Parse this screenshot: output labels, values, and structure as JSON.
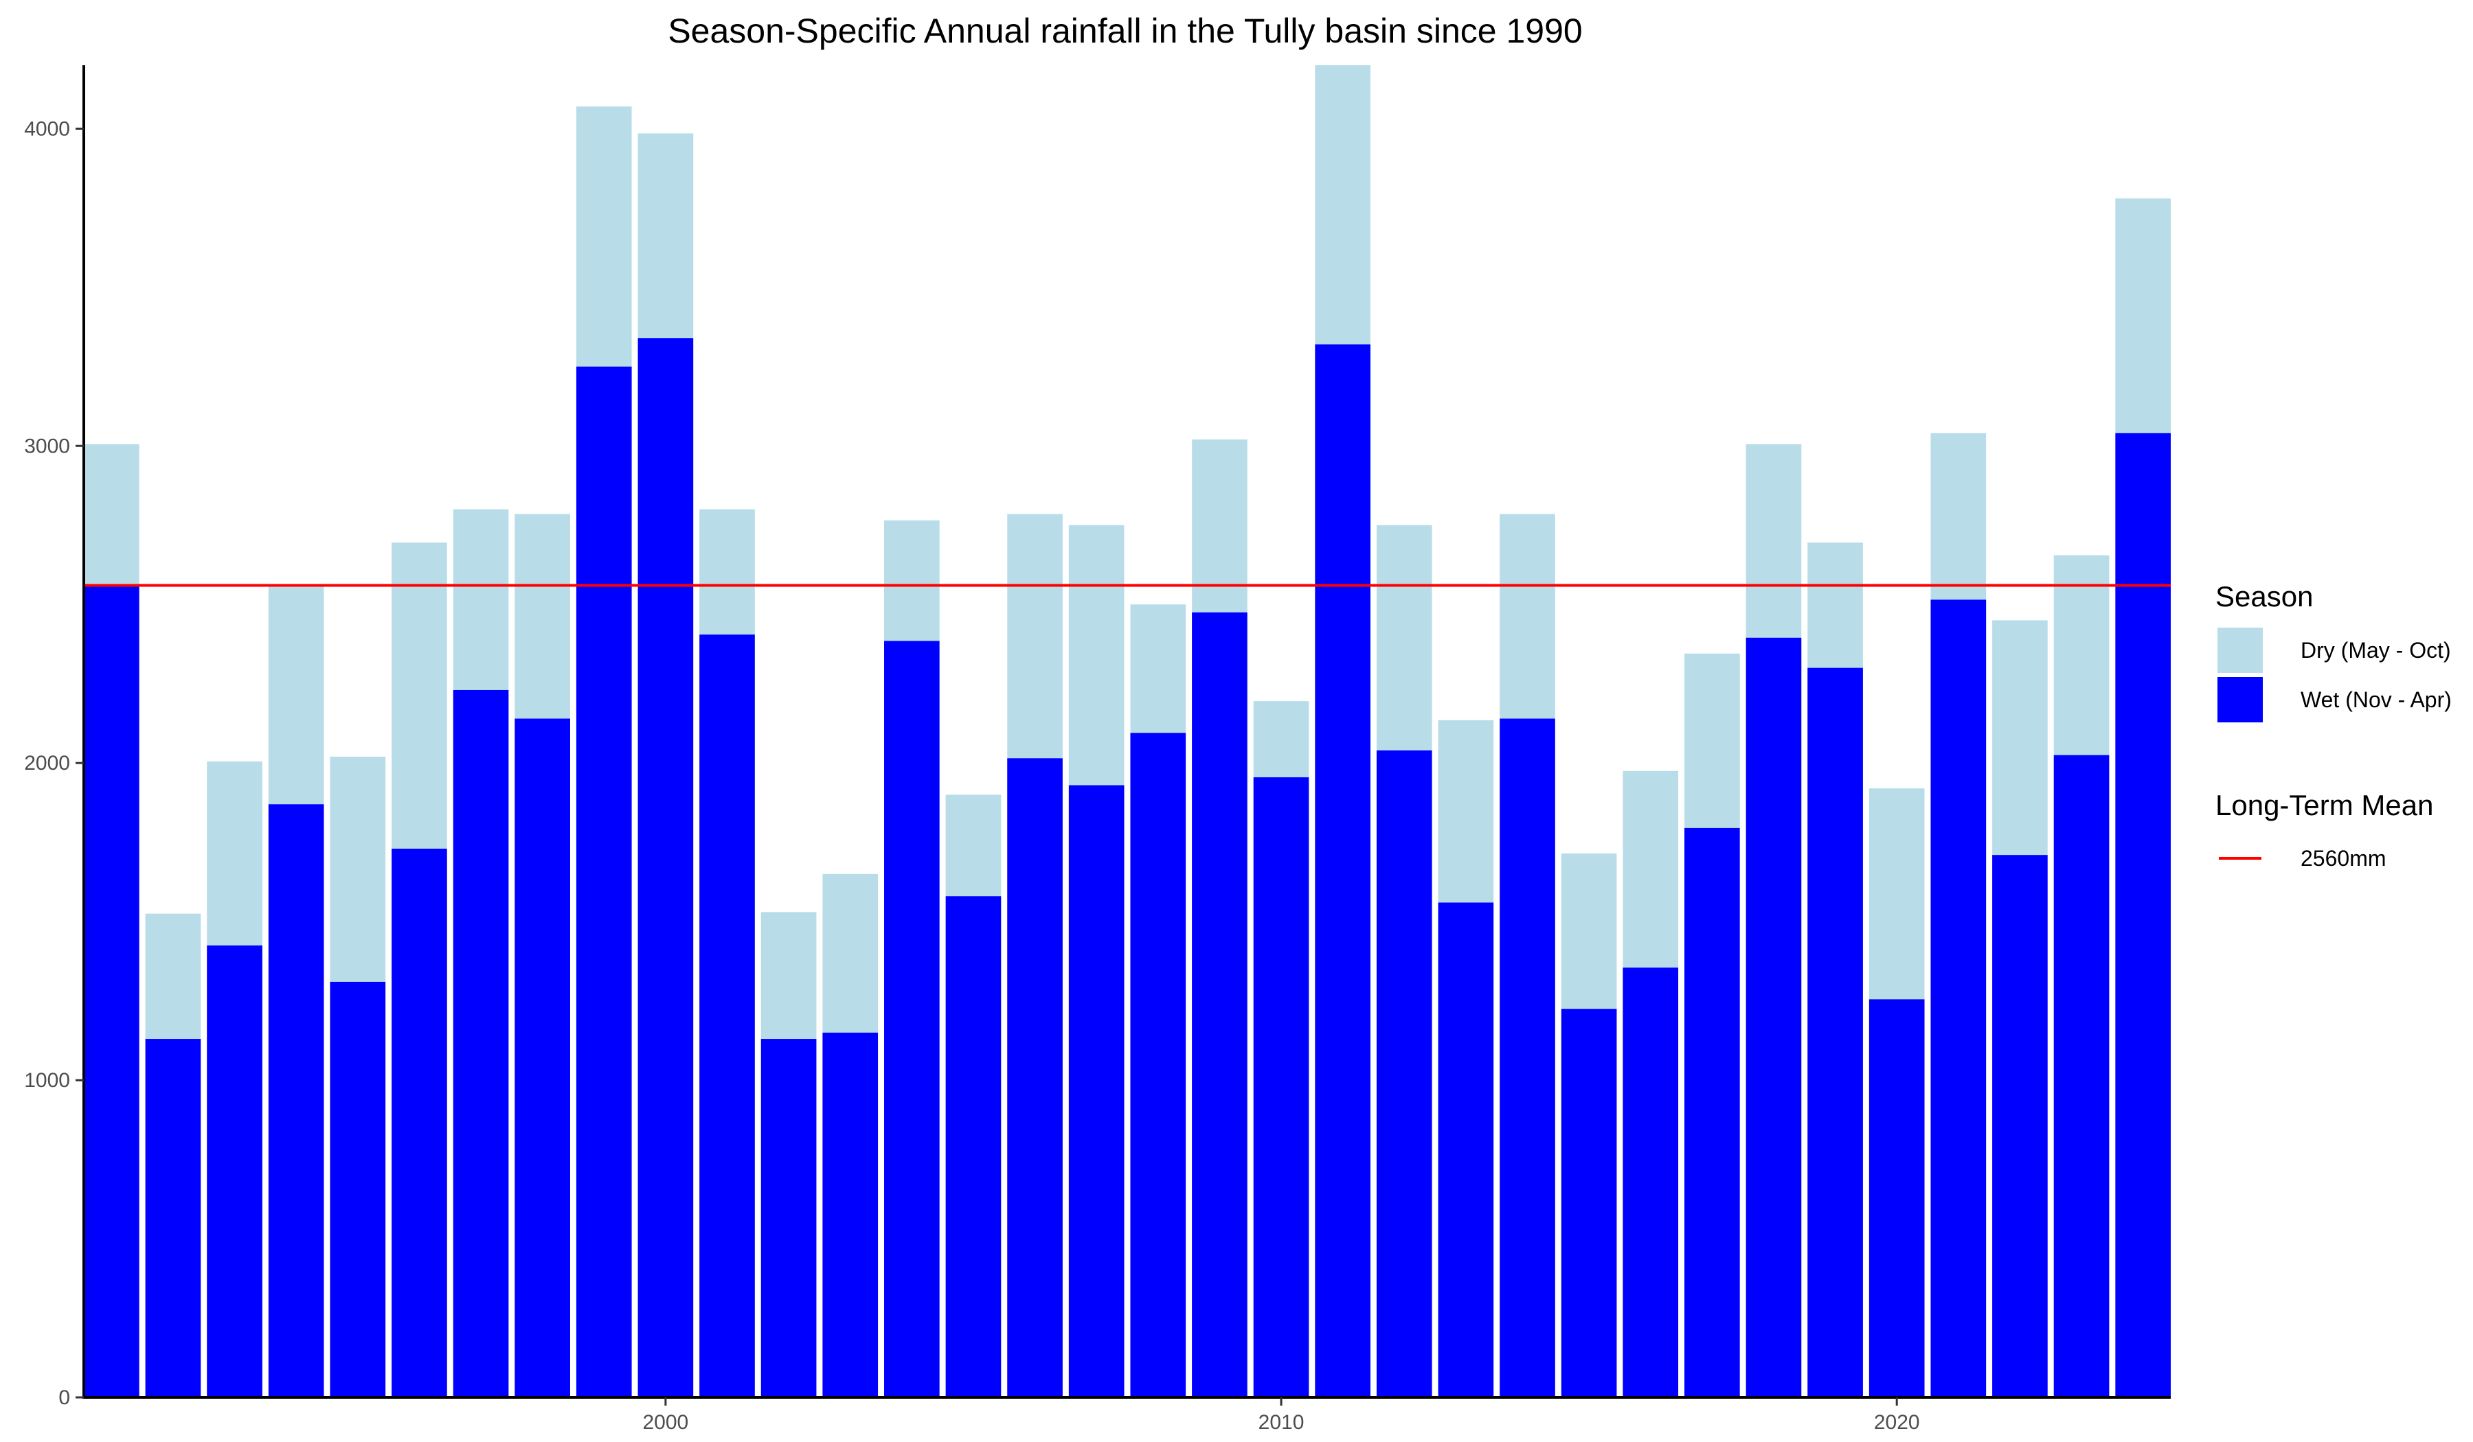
{
  "chart_data": {
    "type": "bar",
    "stacked": true,
    "title": "Season-Specific Annual rainfall in the Tully basin since 1990",
    "xlabel": "",
    "ylabel": "",
    "x": [
      1991,
      1992,
      1993,
      1994,
      1995,
      1996,
      1997,
      1998,
      1999,
      2000,
      2001,
      2002,
      2003,
      2004,
      2005,
      2006,
      2007,
      2008,
      2009,
      2010,
      2011,
      2012,
      2013,
      2014,
      2015,
      2016,
      2017,
      2018,
      2019,
      2020,
      2021,
      2022,
      2023,
      2024
    ],
    "xticks": [
      2000,
      2010,
      2020
    ],
    "yticks": [
      0,
      1000,
      2000,
      3000,
      4000
    ],
    "xlim": [
      1990.55,
      2024.45
    ],
    "ylim": [
      0,
      4200
    ],
    "grid": false,
    "legend_position": "right",
    "series": [
      {
        "name": "Wet (Nov - Apr)",
        "color": "#0000ff",
        "values": [
          2560,
          1130,
          1425,
          1870,
          1310,
          1730,
          2230,
          2140,
          3250,
          3340,
          2405,
          1130,
          1150,
          2385,
          1580,
          2015,
          1930,
          2095,
          2475,
          1955,
          3320,
          2040,
          1560,
          2140,
          1225,
          1355,
          1795,
          2395,
          2300,
          1255,
          2515,
          1710,
          2025,
          3040
        ]
      },
      {
        "name": "Dry (May - Oct)",
        "color": "#b8dde9",
        "values": [
          445,
          395,
          580,
          690,
          710,
          965,
          570,
          645,
          820,
          645,
          395,
          400,
          500,
          380,
          320,
          770,
          820,
          405,
          545,
          240,
          880,
          710,
          575,
          645,
          490,
          620,
          550,
          610,
          395,
          665,
          525,
          740,
          630,
          740
        ]
      }
    ],
    "reference_line": {
      "legend_title": "Long-Term Mean",
      "label": "2560mm",
      "value": 2560,
      "color": "#ff0000"
    },
    "legend": {
      "title": "Season",
      "entries": [
        "Dry (May - Oct)",
        "Wet (Nov - Apr)"
      ]
    }
  }
}
